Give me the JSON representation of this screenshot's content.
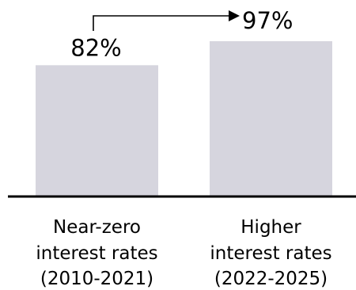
{
  "chart_data": {
    "type": "bar",
    "categories": [
      [
        "Near-zero",
        "interest rates",
        "(2010-2021)"
      ],
      [
        "Higher",
        "interest rates",
        "(2022-2025)"
      ]
    ],
    "values": [
      82,
      97
    ],
    "data_labels": [
      "82%",
      "97%"
    ],
    "ylim": [
      0,
      100
    ],
    "grid": false,
    "legend": "none",
    "annotation": "arrow from first bar label to second bar label",
    "colors": {
      "bar": "#d6d5de",
      "axis": "#000000",
      "text": "#000000"
    }
  }
}
